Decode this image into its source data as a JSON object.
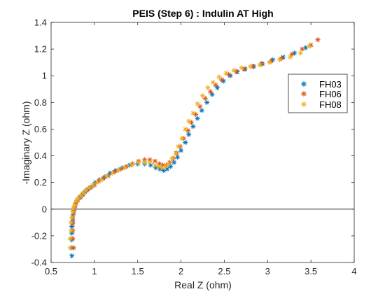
{
  "chart_data": {
    "type": "scatter",
    "title": "PEIS (Step 6) : Indulin AT High",
    "xlabel": "Real Z (ohm)",
    "ylabel": "-Imaginary Z (ohm)",
    "xlim": [
      0.5,
      4
    ],
    "ylim": [
      -0.4,
      1.4
    ],
    "xticks": [
      "0.5",
      "1",
      "1.5",
      "2",
      "2.5",
      "3",
      "3.5",
      "4"
    ],
    "yticks": [
      "-0.4",
      "-0.2",
      "0",
      "0.2",
      "0.4",
      "0.6",
      "0.8",
      "1",
      "1.2",
      "1.4"
    ],
    "marker": "asterisk",
    "zero_line": true,
    "grid": false,
    "legend_position": "top-right",
    "series": [
      {
        "name": "FH03",
        "color": "#0072bd",
        "points": [
          [
            0.74,
            -0.35
          ],
          [
            0.74,
            -0.29
          ],
          [
            0.74,
            -0.23
          ],
          [
            0.74,
            -0.18
          ],
          [
            0.74,
            -0.13
          ],
          [
            0.75,
            -0.09
          ],
          [
            0.75,
            -0.05
          ],
          [
            0.76,
            -0.02
          ],
          [
            0.77,
            0.01
          ],
          [
            0.78,
            0.03
          ],
          [
            0.79,
            0.05
          ],
          [
            0.81,
            0.07
          ],
          [
            0.83,
            0.09
          ],
          [
            0.86,
            0.11
          ],
          [
            0.89,
            0.13
          ],
          [
            0.93,
            0.15
          ],
          [
            0.97,
            0.17
          ],
          [
            1.01,
            0.2
          ],
          [
            1.06,
            0.22
          ],
          [
            1.12,
            0.24
          ],
          [
            1.18,
            0.27
          ],
          [
            1.25,
            0.29
          ],
          [
            1.33,
            0.31
          ],
          [
            1.41,
            0.33
          ],
          [
            1.5,
            0.34
          ],
          [
            1.58,
            0.34
          ],
          [
            1.65,
            0.33
          ],
          [
            1.71,
            0.31
          ],
          [
            1.76,
            0.3
          ],
          [
            1.8,
            0.29
          ],
          [
            1.84,
            0.3
          ],
          [
            1.88,
            0.32
          ],
          [
            1.92,
            0.35
          ],
          [
            1.96,
            0.39
          ],
          [
            2.0,
            0.44
          ],
          [
            2.05,
            0.5
          ],
          [
            2.09,
            0.56
          ],
          [
            2.14,
            0.62
          ],
          [
            2.19,
            0.68
          ],
          [
            2.24,
            0.74
          ],
          [
            2.3,
            0.8
          ],
          [
            2.36,
            0.86
          ],
          [
            2.42,
            0.91
          ],
          [
            2.49,
            0.96
          ],
          [
            2.57,
            1.0
          ],
          [
            2.65,
            1.03
          ],
          [
            2.74,
            1.05
          ],
          [
            2.84,
            1.07
          ],
          [
            2.94,
            1.09
          ],
          [
            3.06,
            1.12
          ],
          [
            3.18,
            1.14
          ],
          [
            3.31,
            1.17
          ],
          [
            3.44,
            1.21
          ]
        ]
      },
      {
        "name": "FH06",
        "color": "#d95319",
        "points": [
          [
            0.76,
            -0.29
          ],
          [
            0.75,
            -0.22
          ],
          [
            0.75,
            -0.16
          ],
          [
            0.75,
            -0.11
          ],
          [
            0.75,
            -0.07
          ],
          [
            0.76,
            -0.03
          ],
          [
            0.77,
            0.0
          ],
          [
            0.78,
            0.03
          ],
          [
            0.79,
            0.05
          ],
          [
            0.81,
            0.07
          ],
          [
            0.84,
            0.09
          ],
          [
            0.87,
            0.11
          ],
          [
            0.91,
            0.14
          ],
          [
            0.95,
            0.16
          ],
          [
            1.0,
            0.18
          ],
          [
            1.05,
            0.21
          ],
          [
            1.1,
            0.23
          ],
          [
            1.16,
            0.25
          ],
          [
            1.23,
            0.28
          ],
          [
            1.3,
            0.3
          ],
          [
            1.37,
            0.32
          ],
          [
            1.44,
            0.34
          ],
          [
            1.51,
            0.36
          ],
          [
            1.58,
            0.37
          ],
          [
            1.64,
            0.37
          ],
          [
            1.7,
            0.36
          ],
          [
            1.75,
            0.34
          ],
          [
            1.79,
            0.33
          ],
          [
            1.83,
            0.33
          ],
          [
            1.87,
            0.35
          ],
          [
            1.91,
            0.38
          ],
          [
            1.95,
            0.42
          ],
          [
            1.99,
            0.47
          ],
          [
            2.03,
            0.53
          ],
          [
            2.08,
            0.59
          ],
          [
            2.12,
            0.65
          ],
          [
            2.17,
            0.71
          ],
          [
            2.22,
            0.77
          ],
          [
            2.28,
            0.83
          ],
          [
            2.34,
            0.88
          ],
          [
            2.4,
            0.93
          ],
          [
            2.47,
            0.97
          ],
          [
            2.55,
            1.01
          ],
          [
            2.64,
            1.03
          ],
          [
            2.73,
            1.05
          ],
          [
            2.83,
            1.07
          ],
          [
            2.93,
            1.09
          ],
          [
            3.04,
            1.11
          ],
          [
            3.16,
            1.13
          ],
          [
            3.28,
            1.16
          ],
          [
            3.4,
            1.2
          ],
          [
            3.5,
            1.23
          ],
          [
            3.58,
            1.27
          ]
        ]
      },
      {
        "name": "FH08",
        "color": "#edb120",
        "points": [
          [
            0.72,
            -0.29
          ],
          [
            0.72,
            -0.22
          ],
          [
            0.73,
            -0.16
          ],
          [
            0.73,
            -0.1
          ],
          [
            0.74,
            -0.06
          ],
          [
            0.75,
            -0.02
          ],
          [
            0.76,
            0.01
          ],
          [
            0.77,
            0.03
          ],
          [
            0.79,
            0.06
          ],
          [
            0.81,
            0.08
          ],
          [
            0.84,
            0.1
          ],
          [
            0.87,
            0.12
          ],
          [
            0.9,
            0.14
          ],
          [
            0.94,
            0.16
          ],
          [
            0.98,
            0.18
          ],
          [
            1.03,
            0.2
          ],
          [
            1.08,
            0.22
          ],
          [
            1.14,
            0.25
          ],
          [
            1.21,
            0.27
          ],
          [
            1.28,
            0.29
          ],
          [
            1.35,
            0.31
          ],
          [
            1.43,
            0.33
          ],
          [
            1.51,
            0.35
          ],
          [
            1.58,
            0.35
          ],
          [
            1.64,
            0.35
          ],
          [
            1.7,
            0.33
          ],
          [
            1.74,
            0.32
          ],
          [
            1.78,
            0.31
          ],
          [
            1.82,
            0.32
          ],
          [
            1.86,
            0.34
          ],
          [
            1.9,
            0.38
          ],
          [
            1.94,
            0.42
          ],
          [
            1.97,
            0.47
          ],
          [
            2.01,
            0.53
          ],
          [
            2.05,
            0.6
          ],
          [
            2.09,
            0.66
          ],
          [
            2.14,
            0.72
          ],
          [
            2.19,
            0.79
          ],
          [
            2.25,
            0.85
          ],
          [
            2.31,
            0.91
          ],
          [
            2.37,
            0.95
          ],
          [
            2.44,
            0.99
          ],
          [
            2.52,
            1.02
          ],
          [
            2.61,
            1.04
          ],
          [
            2.7,
            1.06
          ],
          [
            2.8,
            1.07
          ],
          [
            2.91,
            1.08
          ],
          [
            3.02,
            1.1
          ],
          [
            3.14,
            1.12
          ],
          [
            3.26,
            1.14
          ],
          [
            3.38,
            1.17
          ],
          [
            3.48,
            1.22
          ]
        ]
      }
    ]
  }
}
